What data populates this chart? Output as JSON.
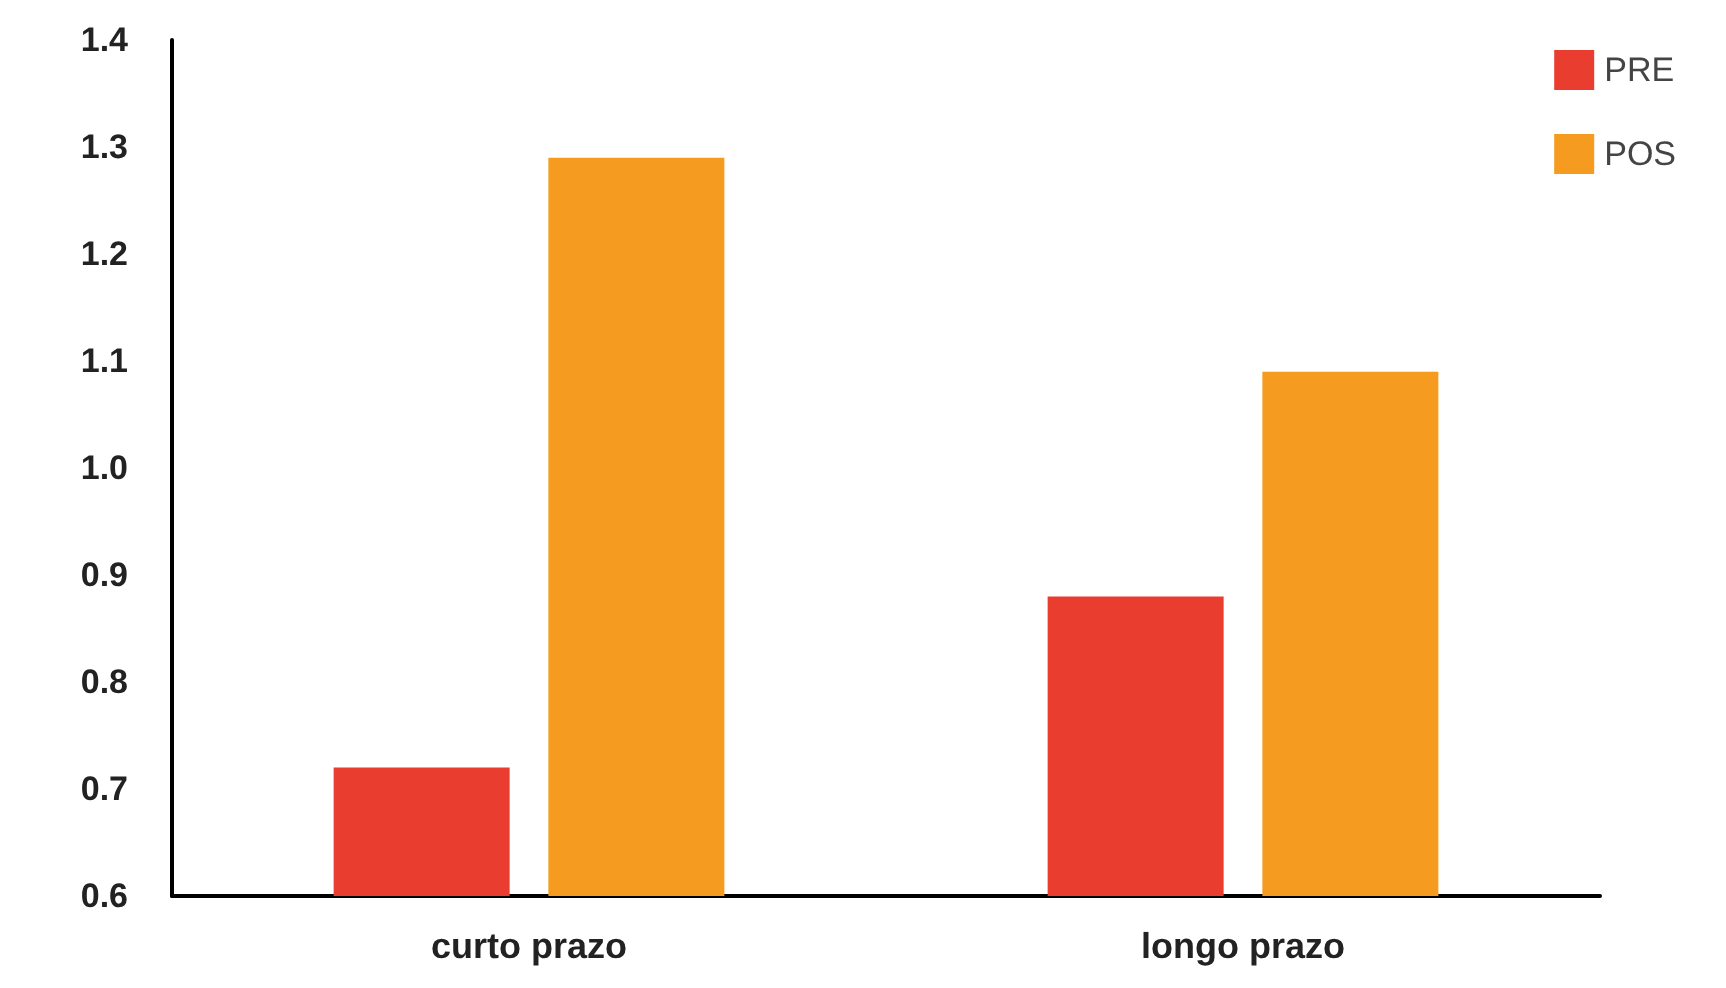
{
  "chart_data": {
    "type": "bar",
    "categories": [
      "curto prazo",
      "longo prazo"
    ],
    "series": [
      {
        "name": "PRE",
        "color": "#e93d30",
        "values": [
          0.72,
          0.88
        ]
      },
      {
        "name": "POS",
        "color": "#f59b1f",
        "values": [
          1.29,
          1.09
        ]
      }
    ],
    "ylim": [
      0.6,
      1.4
    ],
    "yticks": [
      0.6,
      0.7,
      0.8,
      0.9,
      {
        "value": 1,
        "label": "1.0"
      },
      1.1,
      1.2,
      1.3,
      1.4
    ],
    "grid": false,
    "legend": "top right"
  }
}
